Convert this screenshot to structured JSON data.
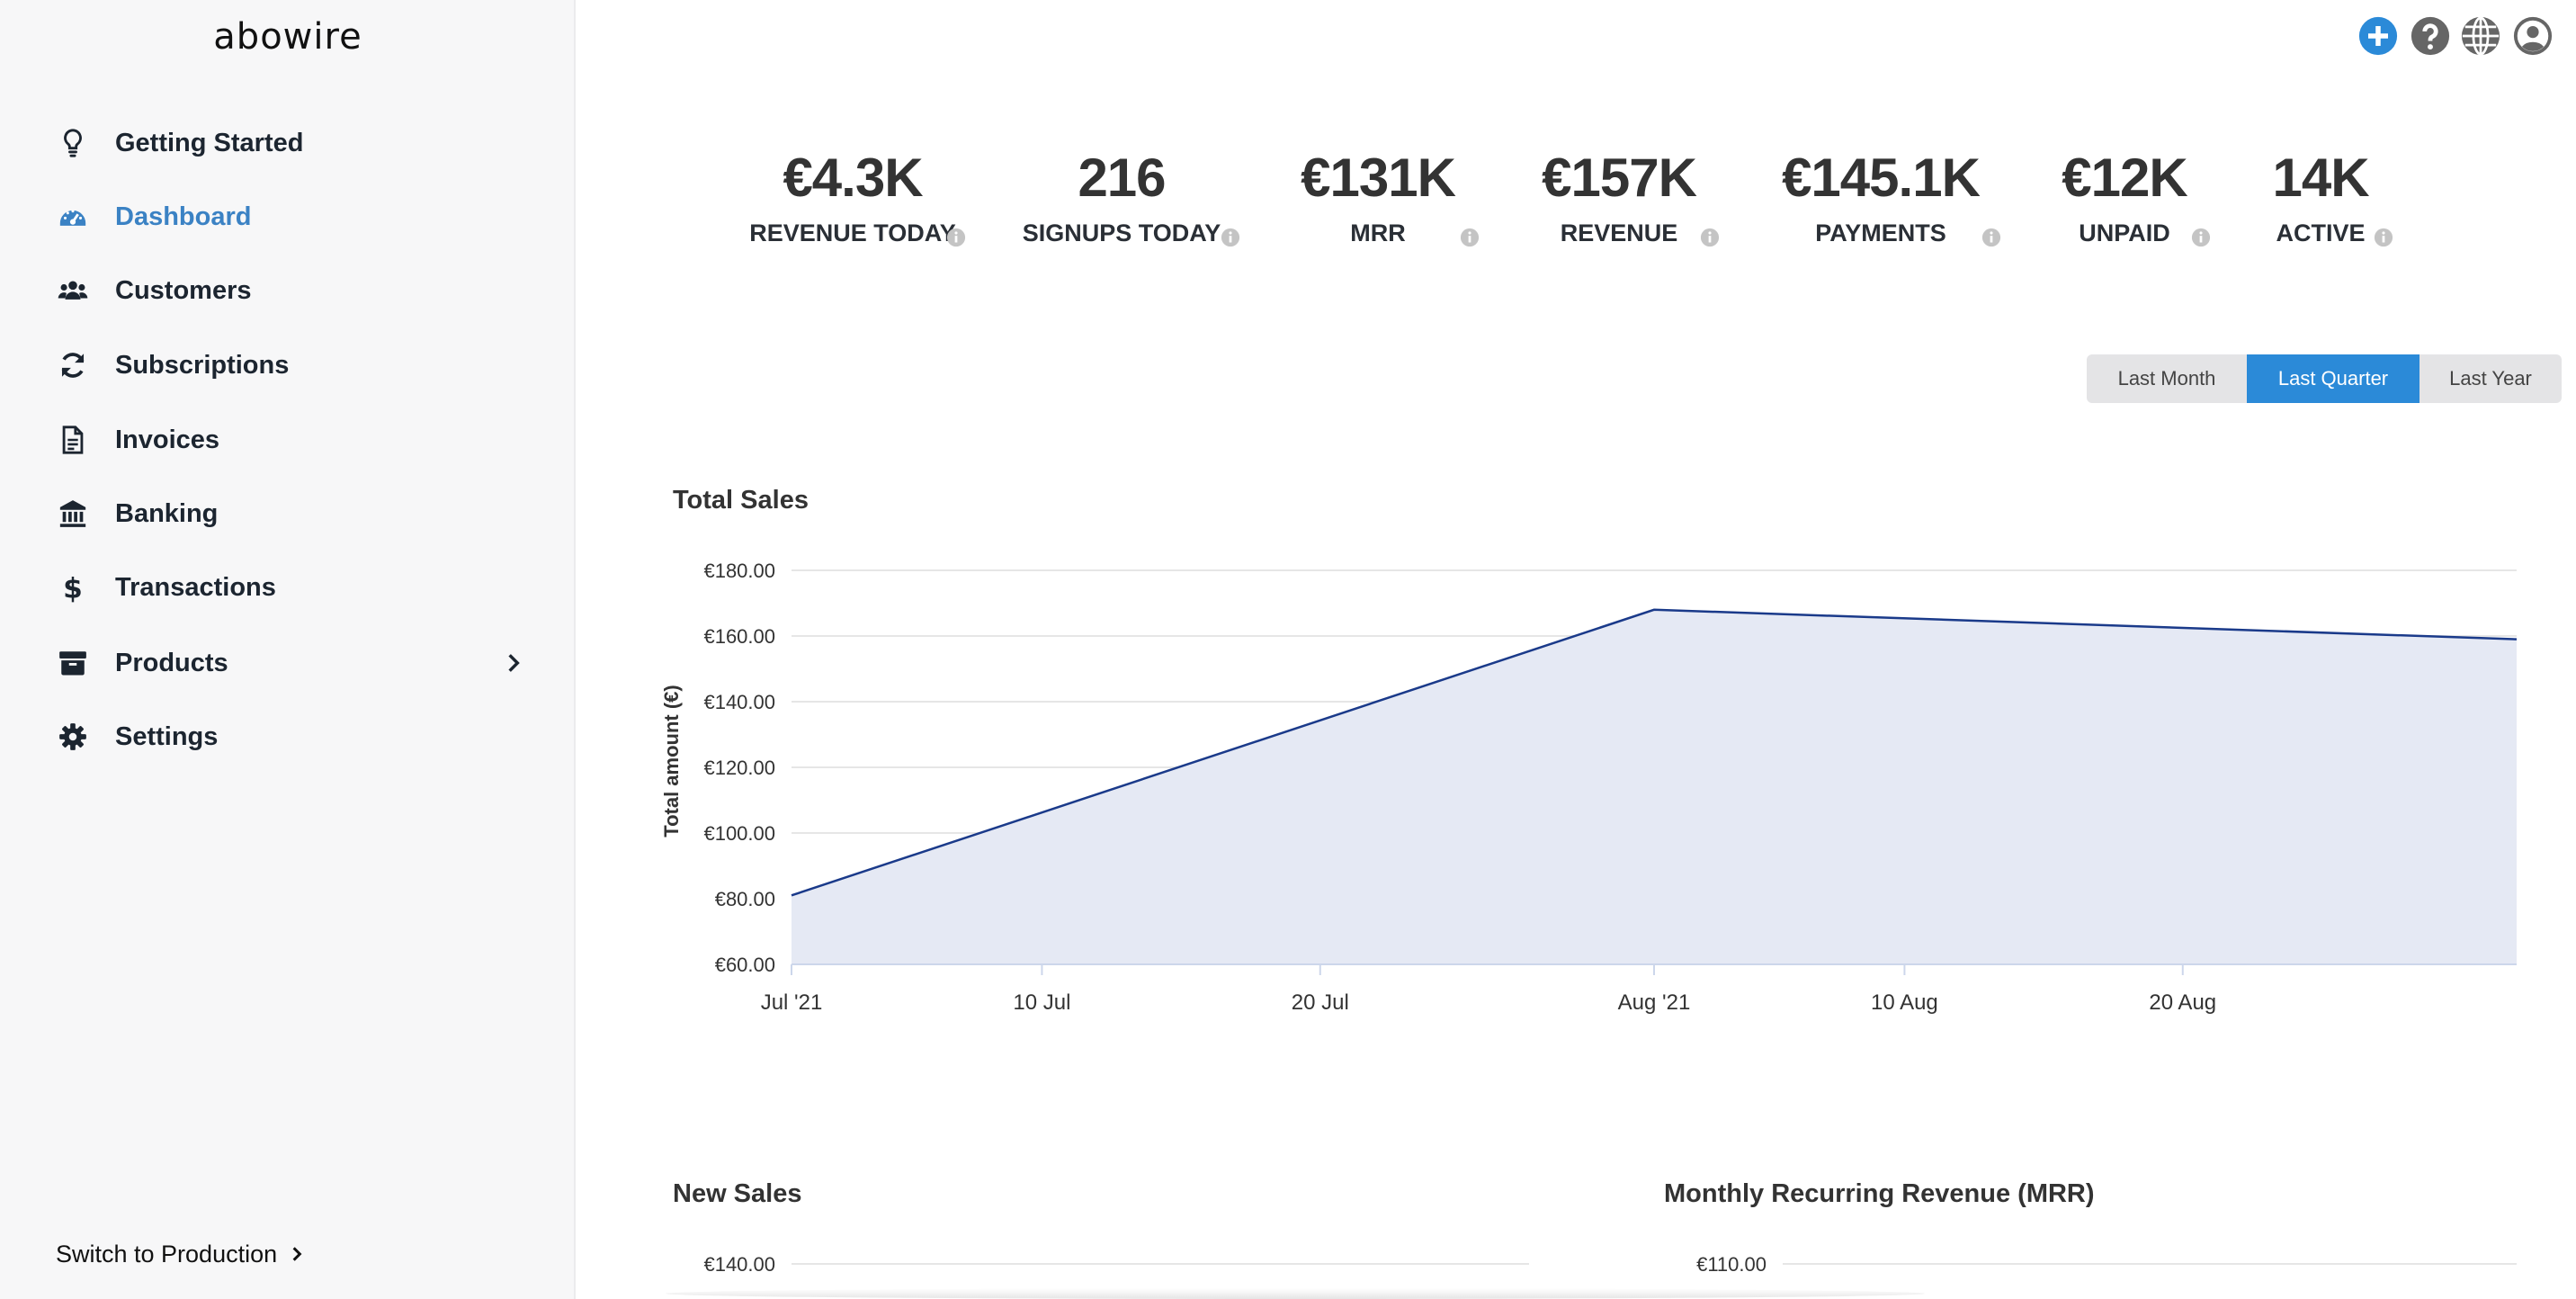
{
  "app": {
    "logo": "abowire"
  },
  "sidebar": {
    "items": [
      {
        "label": "Getting Started",
        "icon": "lightbulb-icon"
      },
      {
        "label": "Dashboard",
        "icon": "dashboard-gauge-icon",
        "active": true
      },
      {
        "label": "Customers",
        "icon": "users-icon"
      },
      {
        "label": "Subscriptions",
        "icon": "sync-icon"
      },
      {
        "label": "Invoices",
        "icon": "document-icon"
      },
      {
        "label": "Banking",
        "icon": "bank-icon"
      },
      {
        "label": "Transactions",
        "icon": "dollar-icon"
      },
      {
        "label": "Products",
        "icon": "box-icon",
        "has_submenu": true
      },
      {
        "label": "Settings",
        "icon": "gear-icon"
      }
    ],
    "footer_link": "Switch to Production"
  },
  "topbar": {
    "icons": [
      "add-icon",
      "help-icon",
      "globe-icon",
      "user-icon"
    ]
  },
  "kpis": [
    {
      "value": "€4.3K",
      "label": "REVENUE TODAY"
    },
    {
      "value": "216",
      "label": "SIGNUPS TODAY"
    },
    {
      "value": "€131K",
      "label": "MRR"
    },
    {
      "value": "€157K",
      "label": "REVENUE"
    },
    {
      "value": "€145.1K",
      "label": "PAYMENTS"
    },
    {
      "value": "€12K",
      "label": "UNPAID"
    },
    {
      "value": "14K",
      "label": "ACTIVE"
    }
  ],
  "range": {
    "options": [
      "Last Month",
      "Last Quarter",
      "Last Year"
    ],
    "selected": "Last Quarter"
  },
  "colors": {
    "accent": "#2b8ad8",
    "line": "#1a3a8a",
    "area": "#e5e9f4",
    "active_nav": "#3b82c4"
  },
  "chart_data": [
    {
      "type": "area",
      "title": "Total Sales",
      "ylabel": "Total amount (€)",
      "xlabel": "",
      "x": [
        0,
        31,
        62
      ],
      "y": [
        81,
        168,
        159
      ],
      "xlim": [
        0,
        62
      ],
      "ylim": [
        60,
        180
      ],
      "yticks": [
        60,
        80,
        100,
        120,
        140,
        160,
        180
      ],
      "ytick_labels": [
        "€60.00",
        "€80.00",
        "€100.00",
        "€120.00",
        "€140.00",
        "€160.00",
        "€180.00"
      ],
      "xticks": [
        0,
        9,
        19,
        31,
        40,
        50
      ],
      "xtick_labels": [
        "Jul '21",
        "10 Jul",
        "20 Jul",
        "Aug '21",
        "10 Aug",
        "20 Aug"
      ],
      "grid": true
    },
    {
      "type": "area",
      "title": "New Sales",
      "visible_ytick_labels": [
        "€140.00"
      ]
    },
    {
      "type": "area",
      "title": "Monthly Recurring Revenue (MRR)",
      "visible_ytick_labels": [
        "€110.00"
      ]
    }
  ]
}
